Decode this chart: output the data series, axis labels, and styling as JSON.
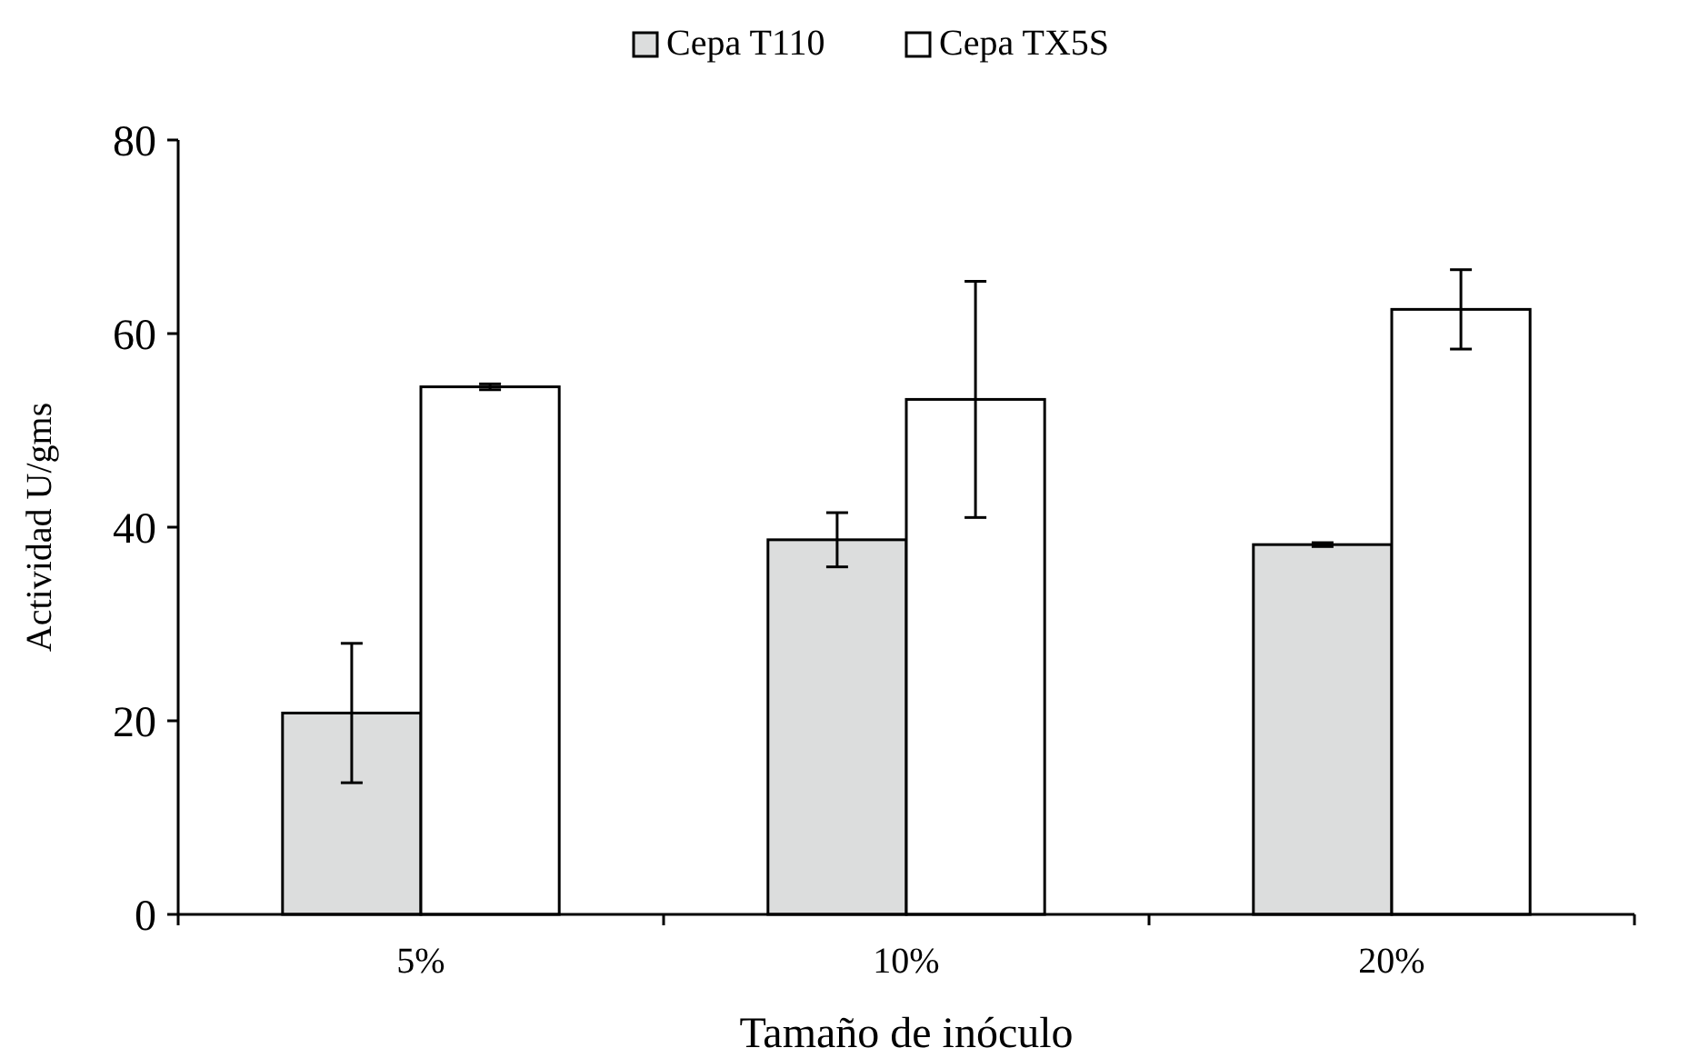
{
  "chart_data": {
    "type": "bar",
    "xlabel": "Tamaño de inóculo",
    "ylabel": "Actividad U/gms",
    "categories": [
      "5%",
      "10%",
      "20%"
    ],
    "series": [
      {
        "name": "Cepa T110",
        "color": "#dcdddd",
        "values": [
          20.8,
          38.7,
          38.2
        ],
        "errors": [
          7.2,
          2.8,
          0.2
        ]
      },
      {
        "name": "Cepa TX5S",
        "color": "#ffffff",
        "values": [
          54.5,
          53.2,
          62.5
        ],
        "errors": [
          0.3,
          12.2,
          4.1
        ]
      }
    ],
    "ylim": [
      0,
      80
    ],
    "yticks": [
      0,
      20,
      40,
      60,
      80
    ],
    "grid": false,
    "legend": "top"
  }
}
